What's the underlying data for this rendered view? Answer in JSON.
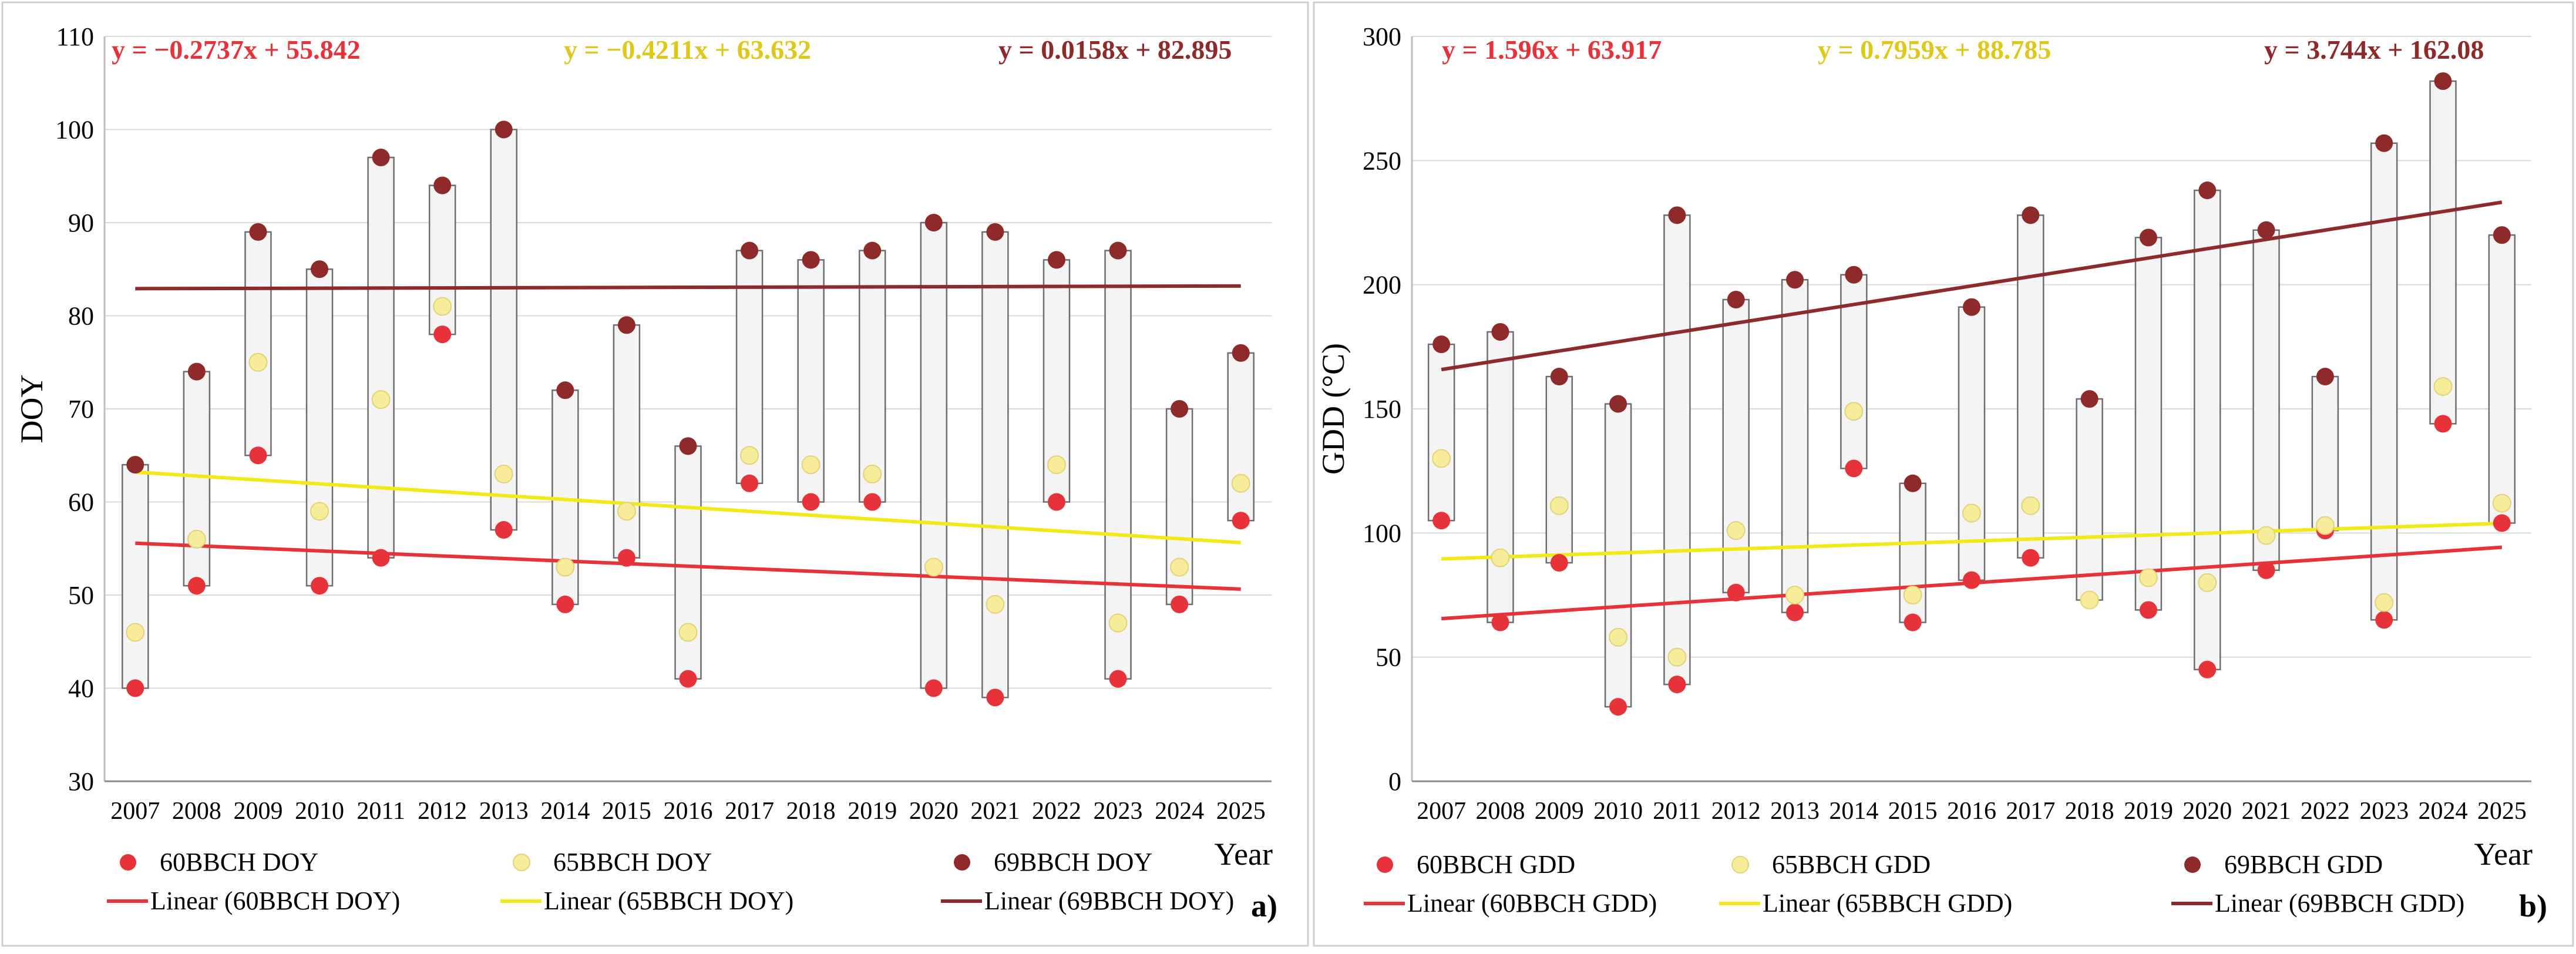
{
  "chart_data": [
    {
      "type": "scatter",
      "panel_label": "a)",
      "xlabel": "Year",
      "ylabel": "DOY",
      "ylim": [
        30,
        110
      ],
      "yticks": [
        30,
        40,
        50,
        60,
        70,
        80,
        90,
        100,
        110
      ],
      "categories": [
        "2007",
        "2008",
        "2009",
        "2010",
        "2011",
        "2012",
        "2013",
        "2014",
        "2015",
        "2016",
        "2017",
        "2018",
        "2019",
        "2020",
        "2021",
        "2022",
        "2023",
        "2024",
        "2025"
      ],
      "series": [
        {
          "name": "60BBCH DOY",
          "color": "#e8323a",
          "values": [
            40,
            51,
            65,
            51,
            54,
            78,
            57,
            49,
            54,
            41,
            62,
            60,
            60,
            40,
            39,
            60,
            41,
            49,
            58
          ]
        },
        {
          "name": "65BBCH DOY",
          "color": "#f6ec9a",
          "values": [
            46,
            56,
            75,
            59,
            71,
            81,
            63,
            53,
            59,
            46,
            65,
            64,
            63,
            53,
            49,
            64,
            47,
            53,
            62
          ]
        },
        {
          "name": "69BBCH DOY",
          "color": "#8e2a2a",
          "values": [
            64,
            74,
            89,
            85,
            97,
            94,
            100,
            72,
            79,
            66,
            87,
            86,
            87,
            90,
            89,
            86,
            87,
            70,
            76
          ]
        }
      ],
      "trendlines": [
        {
          "name": "Linear (60BBCH DOY)",
          "color": "#e8323a",
          "slope": -0.2737,
          "intercept": 55.842,
          "equation": "y = −0.2737x + 55.842"
        },
        {
          "name": "Linear (65BBCH DOY)",
          "color": "#f1ea16",
          "slope": -0.4211,
          "intercept": 63.632,
          "equation": "y = −0.4211x + 63.632"
        },
        {
          "name": "Linear (69BBCH DOY)",
          "color": "#8e2a2a",
          "slope": 0.0158,
          "intercept": 82.895,
          "equation": "y = 0.0158x + 82.895"
        }
      ],
      "equation_colors": [
        "#e8323a",
        "#e0c81a",
        "#8e2a2a"
      ],
      "legend_placement": "bottom"
    },
    {
      "type": "scatter",
      "panel_label": "b)",
      "xlabel": "Year",
      "ylabel": "GDD (°C)",
      "ylim": [
        0,
        300
      ],
      "yticks": [
        0,
        50,
        100,
        150,
        200,
        250,
        300
      ],
      "categories": [
        "2007",
        "2008",
        "2009",
        "2010",
        "2011",
        "2012",
        "2013",
        "2014",
        "2015",
        "2016",
        "2017",
        "2018",
        "2019",
        "2020",
        "2021",
        "2022",
        "2023",
        "2024",
        "2025"
      ],
      "series": [
        {
          "name": "60BBCH GDD",
          "color": "#e8323a",
          "values": [
            105,
            64,
            88,
            30,
            39,
            76,
            68,
            126,
            64,
            81,
            90,
            73,
            69,
            45,
            85,
            101,
            65,
            144,
            104
          ]
        },
        {
          "name": "65BBCH GDD",
          "color": "#f6ec9a",
          "values": [
            130,
            90,
            111,
            58,
            50,
            101,
            75,
            149,
            75,
            108,
            111,
            73,
            82,
            80,
            99,
            103,
            72,
            159,
            112
          ]
        },
        {
          "name": "69BBCH GDD",
          "color": "#8e2a2a",
          "values": [
            176,
            181,
            163,
            152,
            228,
            194,
            202,
            204,
            120,
            191,
            228,
            154,
            219,
            238,
            222,
            163,
            257,
            282,
            220
          ]
        }
      ],
      "trendlines": [
        {
          "name": "Linear (60BBCH GDD)",
          "color": "#e8323a",
          "slope": 1.596,
          "intercept": 63.917,
          "equation": "y = 1.596x + 63.917"
        },
        {
          "name": "Linear (65BBCH GDD)",
          "color": "#f1ea16",
          "slope": 0.7959,
          "intercept": 88.785,
          "equation": "y = 0.7959x + 88.785"
        },
        {
          "name": "Linear (69BBCH GDD)",
          "color": "#8e2a2a",
          "slope": 3.744,
          "intercept": 162.08,
          "equation": "y = 3.744x + 162.08"
        }
      ],
      "equation_colors": [
        "#e8323a",
        "#e0c81a",
        "#8e2a2a"
      ],
      "legend_placement": "bottom"
    }
  ]
}
